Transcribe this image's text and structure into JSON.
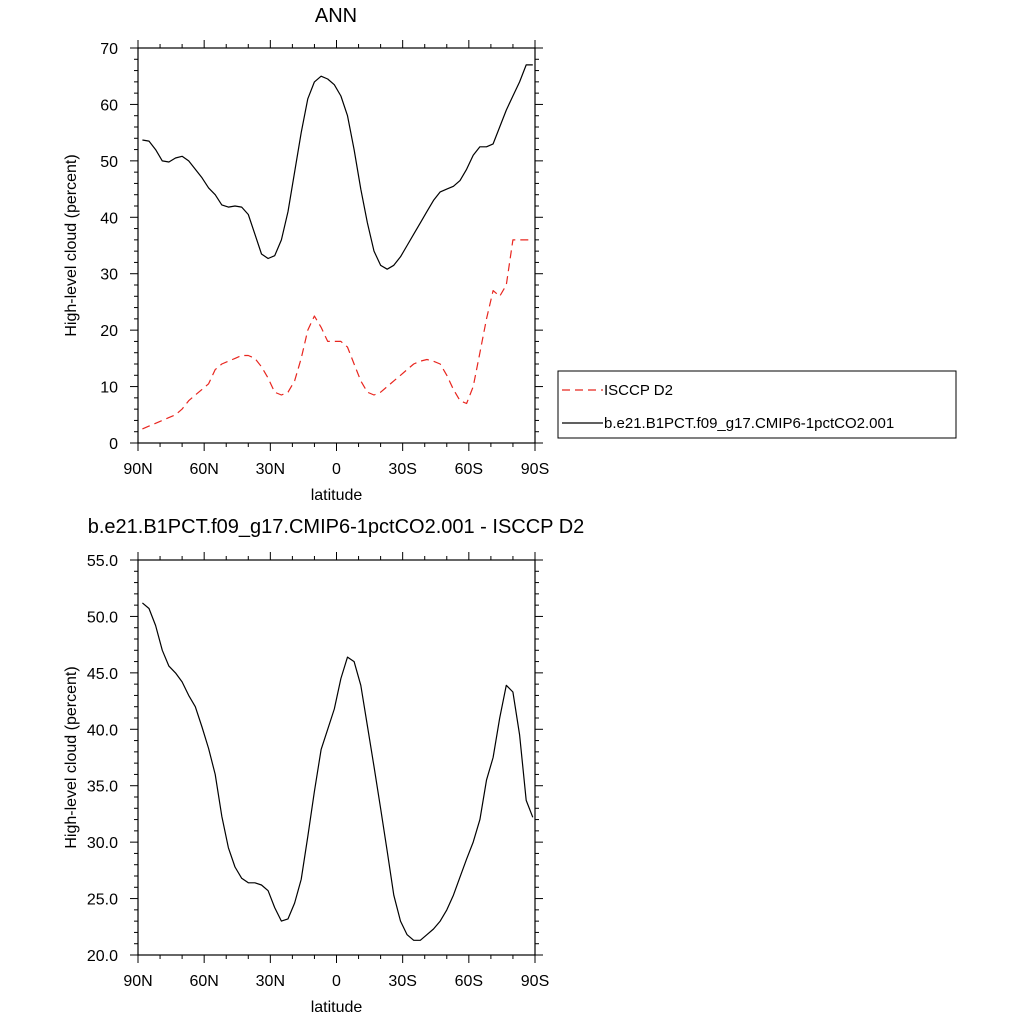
{
  "chart_data": [
    {
      "type": "line",
      "title": "ANN",
      "xlabel": "latitude",
      "ylabel": "High-level cloud (percent)",
      "xlim": [
        90,
        -90
      ],
      "ylim": [
        0,
        70
      ],
      "xticks": [
        90,
        60,
        30,
        0,
        -30,
        -60,
        -90
      ],
      "xtick_labels": [
        "90N",
        "60N",
        "30N",
        "0",
        "30S",
        "60S",
        "90S"
      ],
      "yticks": [
        0,
        10,
        20,
        30,
        40,
        50,
        60,
        70
      ],
      "ytick_labels": [
        "0",
        "10",
        "20",
        "30",
        "40",
        "50",
        "60",
        "70"
      ],
      "legend_position": "right",
      "grid": false,
      "series": [
        {
          "name": "ISCCP D2",
          "color": "#e8261f",
          "dash": "dashed",
          "x": [
            88,
            85,
            82,
            79,
            76,
            73,
            70,
            67,
            64,
            61,
            58,
            55,
            52,
            49,
            46,
            43,
            40,
            37,
            34,
            31,
            28,
            25,
            22,
            19,
            16,
            13,
            10,
            7,
            4,
            1,
            -2,
            -5,
            -8,
            -11,
            -14,
            -17,
            -20,
            -23,
            -26,
            -29,
            -32,
            -35,
            -38,
            -41,
            -44,
            -47,
            -50,
            -53,
            -56,
            -59,
            -62,
            -65,
            -68,
            -71,
            -74,
            -77,
            -80,
            -83,
            -86,
            -89
          ],
          "y": [
            2.5,
            3,
            3.5,
            4,
            4.5,
            5,
            6,
            7.5,
            8.5,
            9.5,
            10.5,
            13,
            14,
            14.5,
            15,
            15.5,
            15.5,
            15,
            13.5,
            11.5,
            9,
            8.5,
            9,
            11,
            15,
            20,
            22.5,
            20.5,
            18,
            18,
            18,
            17,
            14,
            11,
            9,
            8.5,
            9,
            10,
            11,
            12,
            13,
            14,
            14.5,
            14.8,
            14.5,
            14,
            12,
            9.5,
            7.5,
            7,
            10,
            16,
            22,
            27,
            26,
            28,
            36,
            36,
            36,
            36
          ]
        },
        {
          "name": "b.e21.B1PCT.f09_g17.CMIP6-1pctCO2.001",
          "color": "#000000",
          "dash": "solid",
          "x": [
            88,
            85,
            82,
            79,
            76,
            73,
            70,
            67,
            64,
            61,
            58,
            55,
            52,
            49,
            46,
            43,
            40,
            37,
            34,
            31,
            28,
            25,
            22,
            19,
            16,
            13,
            10,
            7,
            4,
            1,
            -2,
            -5,
            -8,
            -11,
            -14,
            -17,
            -20,
            -23,
            -26,
            -29,
            -32,
            -35,
            -38,
            -41,
            -44,
            -47,
            -50,
            -53,
            -56,
            -59,
            -62,
            -65,
            -68,
            -71,
            -74,
            -77,
            -80,
            -83,
            -86,
            -89
          ],
          "y": [
            53.7,
            53.5,
            52,
            50,
            49.8,
            50.5,
            50.8,
            50,
            48.5,
            47,
            45.2,
            44,
            42.2,
            41.8,
            42,
            41.8,
            40.5,
            37,
            33.5,
            32.7,
            33.2,
            36,
            41,
            48,
            55,
            61,
            64,
            65,
            64.5,
            63.5,
            61.5,
            58,
            52,
            45,
            39,
            34,
            31.5,
            30.8,
            31.5,
            33,
            35,
            37,
            39,
            41,
            43,
            44.5,
            45,
            45.5,
            46.5,
            48.5,
            51,
            52.5,
            52.5,
            53,
            56,
            59,
            61.5,
            64,
            67,
            67
          ]
        }
      ]
    },
    {
      "type": "line",
      "title": "b.e21.B1PCT.f09_g17.CMIP6-1pctCO2.001 - ISCCP D2",
      "xlabel": "latitude",
      "ylabel": "High-level cloud (percent)",
      "xlim": [
        90,
        -90
      ],
      "ylim": [
        20,
        55
      ],
      "xticks": [
        90,
        60,
        30,
        0,
        -30,
        -60,
        -90
      ],
      "xtick_labels": [
        "90N",
        "60N",
        "30N",
        "0",
        "30S",
        "60S",
        "90S"
      ],
      "yticks": [
        20,
        25,
        30,
        35,
        40,
        45,
        50,
        55
      ],
      "ytick_labels": [
        "20.0",
        "25.0",
        "30.0",
        "35.0",
        "40.0",
        "45.0",
        "50.0",
        "55.0"
      ],
      "grid": false,
      "series": [
        {
          "color": "#000000",
          "dash": "solid",
          "x": [
            88,
            85,
            82,
            79,
            76,
            73,
            70,
            67,
            64,
            61,
            58,
            55,
            52,
            49,
            46,
            43,
            40,
            37,
            34,
            31,
            28,
            25,
            22,
            19,
            16,
            13,
            10,
            7,
            4,
            1,
            -2,
            -5,
            -8,
            -11,
            -14,
            -17,
            -20,
            -23,
            -26,
            -29,
            -32,
            -35,
            -38,
            -41,
            -44,
            -47,
            -50,
            -53,
            -56,
            -59,
            -62,
            -65,
            -68,
            -71,
            -74,
            -77,
            -80,
            -83,
            -86,
            -89
          ],
          "y": [
            51.2,
            50.7,
            49.2,
            47,
            45.6,
            45,
            44.2,
            43,
            42,
            40.2,
            38.3,
            36,
            32.3,
            29.5,
            27.8,
            26.8,
            26.4,
            26.4,
            26.2,
            25.7,
            24.2,
            23,
            23.2,
            24.6,
            26.7,
            30.5,
            34.5,
            38.2,
            40,
            41.8,
            44.5,
            46.4,
            46,
            43.9,
            40.3,
            36.7,
            33,
            29.2,
            25.3,
            23,
            21.8,
            21.3,
            21.3,
            21.8,
            22.3,
            23,
            24,
            25.3,
            26.9,
            28.5,
            30,
            32,
            35.5,
            37.5,
            41,
            43.9,
            43.3,
            39.5,
            33.7,
            32.2
          ]
        }
      ]
    }
  ],
  "legend": [
    {
      "label": "ISCCP D2",
      "color": "#e8261f",
      "dash": "dashed"
    },
    {
      "label": "b.e21.B1PCT.f09_g17.CMIP6-1pctCO2.001",
      "color": "#000000",
      "dash": "solid"
    }
  ]
}
